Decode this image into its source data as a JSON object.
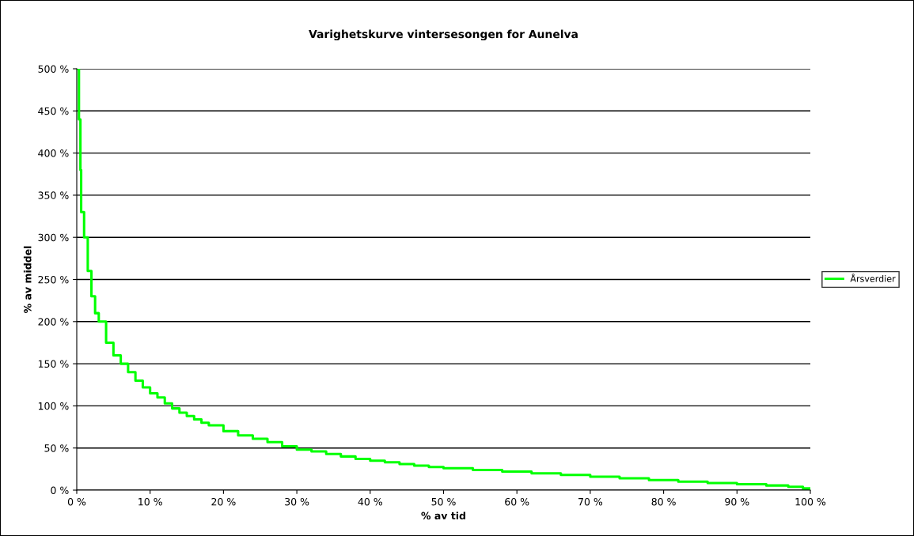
{
  "chart_data": {
    "type": "step",
    "title": "Varighetskurve vintersesongen for Aunelva",
    "xlabel": "% av tid",
    "ylabel": "% av middel",
    "xlim": [
      0,
      100
    ],
    "xticks": [
      {
        "value": 0,
        "label": "0 %"
      },
      {
        "value": 10,
        "label": "10 %"
      },
      {
        "value": 20,
        "label": "20 %"
      },
      {
        "value": 30,
        "label": "30 %"
      },
      {
        "value": 40,
        "label": "40 %"
      },
      {
        "value": 50,
        "label": "50 %"
      },
      {
        "value": 60,
        "label": "60 %"
      },
      {
        "value": 70,
        "label": "70 %"
      },
      {
        "value": 80,
        "label": "80 %"
      },
      {
        "value": 90,
        "label": "90 %"
      },
      {
        "value": 100,
        "label": "100 %"
      }
    ],
    "ylim": [
      0,
      500
    ],
    "yticks": [
      {
        "value": 0,
        "label": "0 %"
      },
      {
        "value": 50,
        "label": "50 %"
      },
      {
        "value": 100,
        "label": "100 %"
      },
      {
        "value": 150,
        "label": "150 %"
      },
      {
        "value": 200,
        "label": "200 %"
      },
      {
        "value": 250,
        "label": "250 %"
      },
      {
        "value": 300,
        "label": "300 %"
      },
      {
        "value": 350,
        "label": "350 %"
      },
      {
        "value": 400,
        "label": "400 %"
      },
      {
        "value": 450,
        "label": "450 %"
      },
      {
        "value": 500,
        "label": "500 %"
      }
    ],
    "grid": "y",
    "legend": "right",
    "series": [
      {
        "name": "Årsverdier",
        "color": "#00ff00",
        "x": [
          0,
          0.3,
          0.5,
          0.6,
          1,
          1.5,
          2,
          2.5,
          3,
          4,
          5,
          6,
          7,
          8,
          9,
          10,
          11,
          12,
          13,
          14,
          15,
          16,
          17,
          18,
          20,
          22,
          24,
          26,
          28,
          30,
          32,
          34,
          36,
          38,
          40,
          42,
          44,
          46,
          48,
          50,
          54,
          58,
          62,
          66,
          70,
          74,
          78,
          82,
          86,
          90,
          94,
          97,
          99,
          100
        ],
        "values": [
          500,
          440,
          380,
          330,
          300,
          260,
          230,
          210,
          200,
          175,
          160,
          150,
          140,
          130,
          122,
          115,
          110,
          103,
          97,
          92,
          88,
          84,
          80,
          77,
          70,
          65,
          61,
          57,
          52,
          48,
          46,
          43,
          40,
          37,
          35,
          33,
          31,
          29,
          27.5,
          26,
          24,
          22,
          20,
          18,
          16,
          14,
          12,
          10,
          8.5,
          7,
          5.5,
          4,
          2,
          0
        ]
      }
    ]
  }
}
